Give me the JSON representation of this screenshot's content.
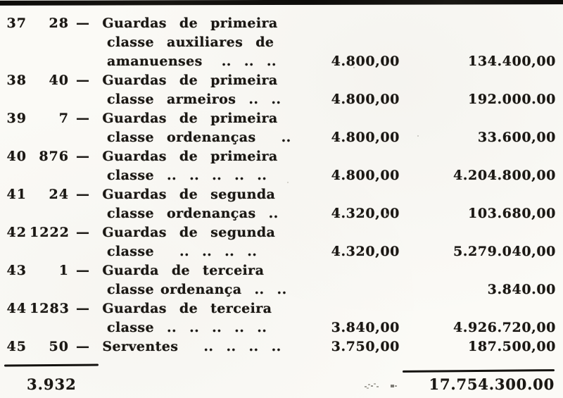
{
  "table": {
    "rows": [
      {
        "num": "37",
        "qty": "28",
        "desc_lines": [
          "—  Guardas  de  primeira",
          "classe  auxiliares  de",
          "amanuenses   ..  ..  .."
        ],
        "unit": "4.800,00",
        "total": "134.400,00"
      },
      {
        "num": "38",
        "qty": "40",
        "desc_lines": [
          "—  Guardas  de  primeira",
          "classe  armeiros  ..  .."
        ],
        "unit": "4.800,00",
        "total": "192.000.00"
      },
      {
        "num": "39",
        "qty": "7",
        "desc_lines": [
          "—  Guardas  de  primeira",
          "classe  ordenanças    .."
        ],
        "unit": "4.800,00",
        "total": "33.600,00"
      },
      {
        "num": "40",
        "qty": "876",
        "desc_lines": [
          "—  Guardas  de  primeira",
          "classe  ..  ..  ..  ..  .."
        ],
        "unit": "4.800,00",
        "total": "4.204.800,00"
      },
      {
        "num": "41",
        "qty": "24",
        "desc_lines": [
          "—  Guardas  de  segunda",
          "classe  ordenanças  .."
        ],
        "unit": "4.320,00",
        "total": "103.680,00"
      },
      {
        "num": "42",
        "qty": "1222",
        "desc_lines": [
          "—  Guardas  de  segunda",
          "classe    ..  ..  ..  .."
        ],
        "unit": "4.320,00",
        "total": "5.279.040,00"
      },
      {
        "num": "43",
        "qty": "1",
        "desc_lines": [
          "—  Guarda  de  terceira",
          "classe ordenança  ..  .."
        ],
        "unit": "",
        "total": "3.840.00"
      },
      {
        "num": "44",
        "qty": "1283",
        "desc_lines": [
          "—  Guardas  de  terceira",
          "classe  ..  ..  ..  ..  .."
        ],
        "unit": "3.840,00",
        "total": "4.926.720,00"
      },
      {
        "num": "45",
        "qty": "50",
        "desc_lines": [
          "—  Serventes    ..  ..  ..  .."
        ],
        "unit": "3.750,00",
        "total": "187.500,00"
      }
    ],
    "summary": {
      "total_qty": "3.932",
      "total_amount": "17.754.300.00"
    }
  }
}
